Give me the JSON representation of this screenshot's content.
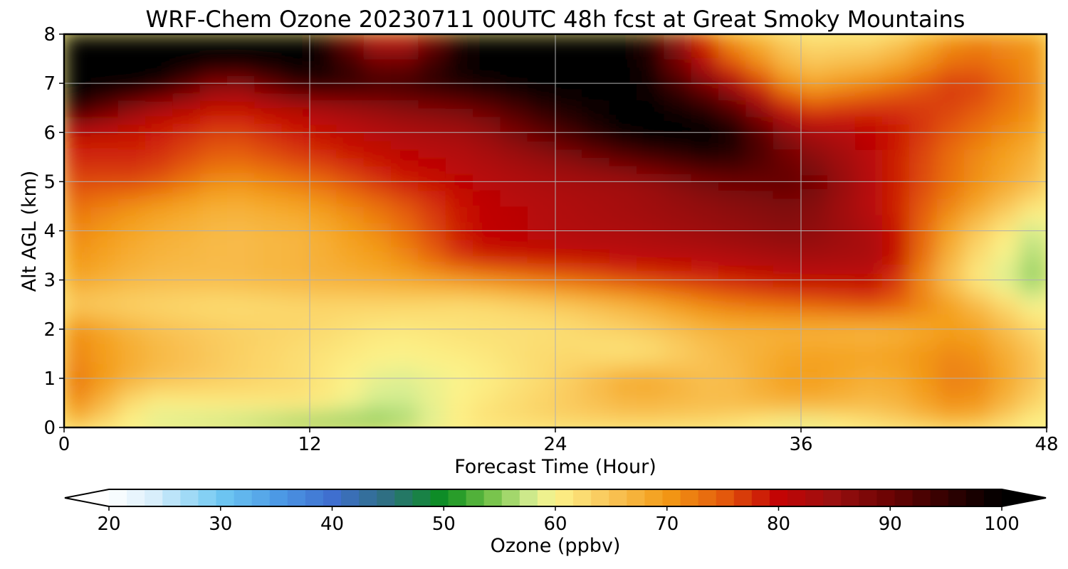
{
  "chart_data": {
    "type": "heatmap",
    "title": "WRF-Chem Ozone  20230711 00UTC 48h fcst at Great Smoky Mountains",
    "xlabel": "Forecast Time (Hour)",
    "ylabel": "Alt AGL (km)",
    "xlim": [
      0,
      48
    ],
    "ylim": [
      0,
      8
    ],
    "x_ticks": [
      "0",
      "12",
      "24",
      "36",
      "48"
    ],
    "y_ticks": [
      "0",
      "1",
      "2",
      "3",
      "4",
      "5",
      "6",
      "7",
      "8"
    ],
    "grid": true,
    "x": [
      0,
      4,
      8,
      12,
      16,
      20,
      24,
      28,
      32,
      36,
      40,
      44,
      48
    ],
    "y": [
      0,
      0.5,
      1,
      1.5,
      2,
      2.5,
      3,
      3.5,
      4,
      4.5,
      5,
      5.5,
      6,
      6.5,
      7,
      7.5,
      8
    ],
    "z": [
      [
        66,
        58,
        56,
        52,
        54,
        62,
        63,
        63,
        62,
        56,
        62,
        66,
        58
      ],
      [
        73,
        60,
        61,
        62,
        57,
        61,
        64,
        67,
        66,
        68,
        66,
        72,
        62
      ],
      [
        74,
        66,
        64,
        62,
        58,
        60,
        63,
        69,
        65,
        70,
        67,
        73,
        64
      ],
      [
        72,
        67,
        64,
        62,
        60,
        61,
        63,
        61,
        66,
        69,
        69,
        72,
        64
      ],
      [
        72,
        66,
        64,
        63,
        61,
        62,
        62,
        64,
        67,
        67,
        66,
        70,
        62
      ],
      [
        64,
        63,
        62,
        63,
        63,
        62,
        64,
        67,
        72,
        74,
        76,
        68,
        58
      ],
      [
        69,
        66,
        66,
        67,
        68,
        70,
        73,
        76,
        78,
        80,
        80,
        62,
        54
      ],
      [
        71,
        67,
        66,
        67,
        70,
        79,
        80,
        81,
        82,
        84,
        83,
        64,
        55
      ],
      [
        72,
        68,
        66,
        67,
        72,
        80,
        82,
        83,
        85,
        87,
        82,
        66,
        56
      ],
      [
        74,
        70,
        67,
        69,
        74,
        80,
        82,
        84,
        86,
        88,
        80,
        70,
        60
      ],
      [
        76,
        76,
        70,
        73,
        78,
        81,
        83,
        84,
        89,
        91,
        80,
        72,
        65
      ],
      [
        78,
        78,
        74,
        77,
        80,
        82,
        86,
        92,
        97,
        88,
        80,
        72,
        66
      ],
      [
        80,
        79,
        76,
        79,
        82,
        84,
        92,
        101,
        101,
        84,
        80,
        74,
        68
      ],
      [
        99,
        83,
        79,
        82,
        86,
        89,
        97,
        101,
        95,
        76,
        78,
        76,
        70
      ],
      [
        101,
        101,
        84,
        97,
        94,
        98,
        101,
        101,
        86,
        68,
        72,
        78,
        70
      ],
      [
        101,
        101,
        101,
        101,
        86,
        101,
        101,
        101,
        76,
        64,
        66,
        74,
        70
      ],
      [
        101,
        101,
        101,
        101,
        76,
        101,
        101,
        101,
        72,
        62,
        62,
        72,
        70
      ]
    ],
    "colorbar": {
      "label": "Ozone  (ppbv)",
      "ticks": [
        "20",
        "30",
        "40",
        "50",
        "60",
        "70",
        "80",
        "90",
        "100"
      ],
      "min": 20,
      "max": 100,
      "extend": "both"
    },
    "colors": {
      "c20": "#ffffff",
      "c30": "#6fc8f2",
      "c40": "#3f6fcf",
      "c50": "#0b8f1f",
      "c60": "#fdf38a",
      "c70": "#f39a15",
      "c80": "#c30404",
      "c90": "#6a0303",
      "c100": "#000000"
    }
  }
}
